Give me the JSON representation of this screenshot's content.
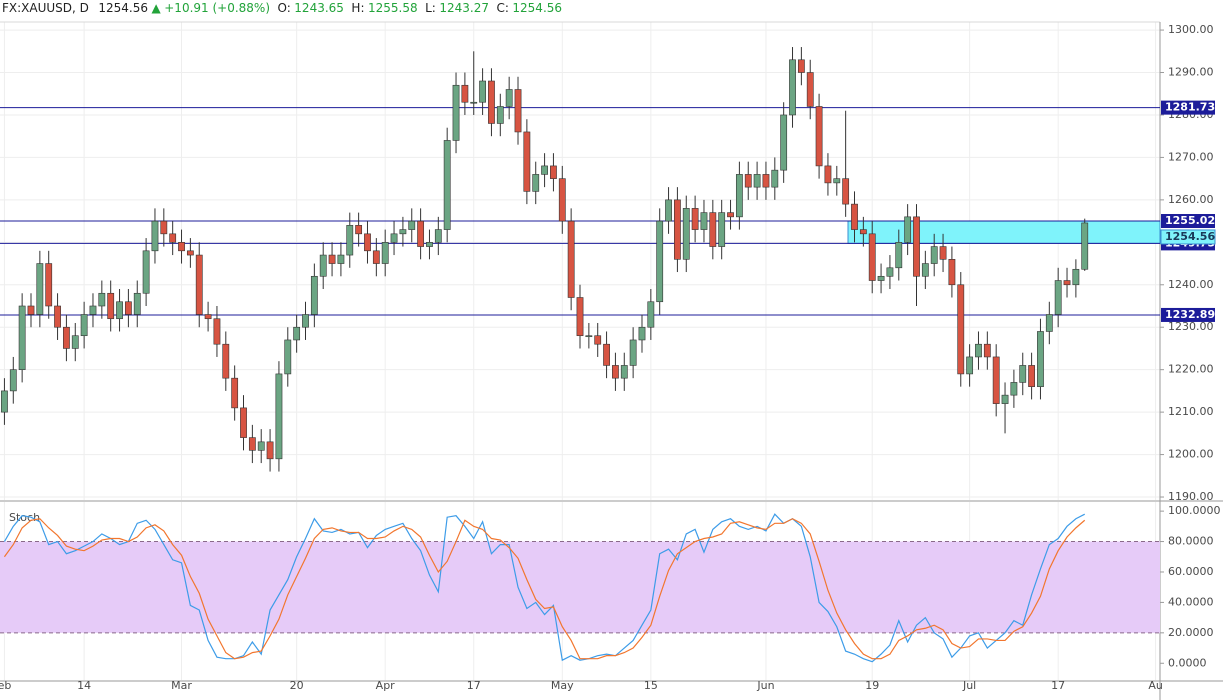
{
  "header": {
    "symbol": "FX:XAUUSD, D",
    "last": "1254.56",
    "arrow": "▲",
    "change": "+10.91 (+0.88%)",
    "o_label": "O:",
    "o": "1243.65",
    "h_label": "H:",
    "h": "1255.58",
    "l_label": "L:",
    "l": "1243.27",
    "c_label": "C:",
    "c": "1254.56"
  },
  "chart_data": [
    {
      "type": "candlestick",
      "up_color": "#6ba583",
      "down_color": "#d75442",
      "wick_color": "#333333",
      "categories": [
        "eb",
        null,
        null,
        null,
        null,
        null,
        null,
        null,
        null,
        "14",
        null,
        null,
        null,
        null,
        null,
        null,
        null,
        null,
        null,
        null,
        "Mar",
        null,
        null,
        null,
        null,
        null,
        null,
        null,
        null,
        null,
        null,
        null,
        null,
        "20",
        null,
        null,
        null,
        null,
        null,
        null,
        null,
        null,
        null,
        "Apr",
        null,
        null,
        null,
        null,
        null,
        null,
        null,
        null,
        null,
        "17",
        null,
        null,
        null,
        null,
        null,
        null,
        null,
        null,
        null,
        "May",
        null,
        null,
        null,
        null,
        null,
        null,
        null,
        null,
        null,
        "15",
        null,
        null,
        null,
        null,
        null,
        null,
        null,
        null,
        null,
        null,
        null,
        null,
        "Jun",
        null,
        null,
        null,
        null,
        null,
        null,
        null,
        null,
        null,
        null,
        null,
        "19",
        null,
        null,
        null,
        null,
        null,
        null,
        null,
        null,
        null,
        null,
        "Jul",
        null,
        null,
        null,
        null,
        null,
        null,
        null,
        null,
        null,
        "17",
        null,
        null,
        null,
        null,
        null,
        null,
        null,
        null,
        null,
        null,
        "Au"
      ],
      "open": [
        1210,
        1215,
        1220,
        1235,
        1233,
        1245,
        1235,
        1230,
        1225,
        1228,
        1233,
        1235,
        1238,
        1232,
        1236,
        1233,
        1238,
        1248,
        1255,
        1252,
        1250,
        1248,
        1247,
        1233,
        1232,
        1226,
        1218,
        1211,
        1204,
        1201,
        1203,
        1199,
        1219,
        1227,
        1230,
        1233,
        1242,
        1247,
        1245,
        1247,
        1254,
        1252,
        1248,
        1245,
        1250,
        1252,
        1253,
        1255,
        1249,
        1250,
        1253,
        1274,
        1287,
        1283,
        1283,
        1288,
        1278,
        1282,
        1286,
        1276,
        1262,
        1266,
        1268,
        1265,
        1255,
        1237,
        1228,
        1228,
        1226,
        1221,
        1218,
        1221,
        1227,
        1230,
        1236,
        1255,
        1260,
        1246,
        1258,
        1253,
        1257,
        1249,
        1257,
        1256,
        1266,
        1263,
        1266,
        1263,
        1267,
        1280,
        1293,
        1290,
        1282,
        1268,
        1264,
        1265,
        1259,
        1253,
        1252,
        1241,
        1242,
        1244,
        1250,
        1256,
        1242,
        1245,
        1249,
        1246,
        1240,
        1219,
        1223,
        1226,
        1223,
        1212,
        1214,
        1217,
        1221,
        1216,
        1229,
        1233,
        1241,
        1240,
        1243.65,
        null,
        null,
        null,
        null,
        null,
        null,
        null,
        null
      ],
      "high": [
        1218,
        1223,
        1238,
        1238,
        1248,
        1248,
        1238,
        1233,
        1231,
        1236,
        1238,
        1241,
        1241,
        1239,
        1239,
        1241,
        1251,
        1258,
        1258,
        1255,
        1253,
        1251,
        1250,
        1236,
        1235,
        1229,
        1221,
        1214,
        1207,
        1206,
        1206,
        1222,
        1230,
        1233,
        1236,
        1245,
        1250,
        1250,
        1250,
        1257,
        1257,
        1255,
        1251,
        1253,
        1255,
        1256,
        1258,
        1258,
        1253,
        1256,
        1277,
        1290,
        1290,
        1295,
        1291,
        1291,
        1285,
        1289,
        1289,
        1279,
        1269,
        1271,
        1271,
        1268,
        1258,
        1240,
        1231,
        1231,
        1229,
        1224,
        1224,
        1230,
        1233,
        1239,
        1258,
        1263,
        1263,
        1261,
        1261,
        1260,
        1260,
        1260,
        1260,
        1269,
        1269,
        1269,
        1269,
        1270,
        1283,
        1296,
        1296,
        1293,
        1285,
        1271,
        1268,
        1281,
        1262,
        1256,
        1255,
        1245,
        1247,
        1253,
        1259,
        1259,
        1248,
        1252,
        1252,
        1249,
        1243,
        1226,
        1229,
        1229,
        1226,
        1217,
        1220,
        1224,
        1224,
        1232,
        1236,
        1244,
        1244,
        1246,
        1255.58,
        null,
        null,
        null,
        null,
        null,
        null,
        null,
        null
      ],
      "low": [
        1207,
        1212,
        1217,
        1230,
        1230,
        1232,
        1227,
        1222,
        1222,
        1225,
        1230,
        1232,
        1229,
        1229,
        1230,
        1230,
        1235,
        1245,
        1249,
        1247,
        1245,
        1244,
        1230,
        1229,
        1223,
        1215,
        1208,
        1201,
        1198,
        1198,
        1196,
        1196,
        1216,
        1224,
        1227,
        1230,
        1239,
        1242,
        1242,
        1244,
        1249,
        1245,
        1242,
        1242,
        1247,
        1249,
        1250,
        1246,
        1246,
        1247,
        1250,
        1271,
        1280,
        1280,
        1280,
        1275,
        1275,
        1279,
        1273,
        1259,
        1259,
        1263,
        1262,
        1252,
        1234,
        1225,
        1225,
        1223,
        1218,
        1215,
        1215,
        1218,
        1224,
        1227,
        1233,
        1252,
        1243,
        1243,
        1250,
        1250,
        1246,
        1246,
        1253,
        1253,
        1260,
        1260,
        1260,
        1260,
        1264,
        1277,
        1287,
        1279,
        1265,
        1261,
        1261,
        1256,
        1250,
        1249,
        1238,
        1238,
        1239,
        1241,
        1247,
        1235,
        1239,
        1242,
        1243,
        1237,
        1216,
        1216,
        1220,
        1220,
        1209,
        1205,
        1211,
        1214,
        1213,
        1213,
        1226,
        1230,
        1237,
        1237,
        1243.27,
        null,
        null,
        null,
        null,
        null,
        null,
        null,
        null
      ],
      "close": [
        1215,
        1220,
        1235,
        1233,
        1245,
        1235,
        1230,
        1225,
        1228,
        1233,
        1235,
        1238,
        1232,
        1236,
        1233,
        1238,
        1248,
        1255,
        1252,
        1250,
        1248,
        1247,
        1233,
        1232,
        1226,
        1218,
        1211,
        1204,
        1201,
        1203,
        1199,
        1219,
        1227,
        1230,
        1233,
        1242,
        1247,
        1245,
        1247,
        1254,
        1252,
        1248,
        1245,
        1250,
        1252,
        1253,
        1255,
        1249,
        1250,
        1253,
        1274,
        1287,
        1283,
        1283,
        1288,
        1278,
        1282,
        1286,
        1276,
        1262,
        1266,
        1268,
        1265,
        1255,
        1237,
        1228,
        1228,
        1226,
        1221,
        1218,
        1221,
        1227,
        1230,
        1236,
        1255,
        1260,
        1246,
        1258,
        1253,
        1257,
        1249,
        1257,
        1256,
        1266,
        1263,
        1266,
        1263,
        1267,
        1280,
        1293,
        1290,
        1282,
        1268,
        1264,
        1265,
        1259,
        1253,
        1252,
        1241,
        1242,
        1244,
        1250,
        1256,
        1242,
        1245,
        1249,
        1246,
        1240,
        1219,
        1223,
        1226,
        1223,
        1212,
        1214,
        1217,
        1221,
        1216,
        1229,
        1233,
        1241,
        1240,
        1243.65,
        1254.56,
        null,
        null,
        null,
        null,
        null,
        null,
        null,
        null
      ],
      "ylim": [
        1189.3,
        1301.9
      ],
      "yticks": [
        {
          "value": 1190,
          "label": "1190.00"
        },
        {
          "value": 1200,
          "label": "1200.00"
        },
        {
          "value": 1210,
          "label": "1210.00"
        },
        {
          "value": 1220,
          "label": "1220.00"
        },
        {
          "value": 1230,
          "label": "1230.00"
        },
        {
          "value": 1240,
          "label": "1240.00"
        },
        {
          "value": 1250,
          "label": "1250.00"
        },
        {
          "value": 1260,
          "label": "1260.00"
        },
        {
          "value": 1270,
          "label": "1270.00"
        },
        {
          "value": 1280,
          "label": "1280.00"
        },
        {
          "value": 1290,
          "label": "1290.00"
        },
        {
          "value": 1300,
          "label": "1300.00"
        }
      ],
      "grid": true,
      "levels": [
        1281.73,
        1255.02,
        1249.75,
        1232.89
      ],
      "level_color": "#1c1c9a",
      "zone": {
        "low": 1249.75,
        "high": 1255.02,
        "color": "#7ff3fb"
      }
    },
    {
      "type": "line",
      "title": "Stoch",
      "ylim": [
        -11,
        106
      ],
      "yticks": [
        {
          "value": 0,
          "label": "0.0000"
        },
        {
          "value": 20,
          "label": "20.0000"
        },
        {
          "value": 40,
          "label": "40.0000"
        },
        {
          "value": 60,
          "label": "60.0000"
        },
        {
          "value": 80,
          "label": "80.0000"
        },
        {
          "value": 100,
          "label": "100.0000"
        }
      ],
      "band": {
        "low": 20,
        "high": 80,
        "color": "#e6cbf8"
      },
      "series": [
        {
          "color": "#3d9ce8",
          "values": [
            80,
            90,
            97,
            96,
            93,
            78,
            80,
            72,
            74,
            77,
            80,
            85,
            82,
            78,
            80,
            92,
            94,
            88,
            78,
            68,
            66,
            38,
            35,
            15,
            4,
            3,
            3,
            5,
            14,
            6,
            35,
            45,
            55,
            70,
            82,
            95,
            87,
            86,
            88,
            85,
            86,
            76,
            84,
            88,
            90,
            92,
            82,
            74,
            58,
            47,
            96,
            97,
            90,
            82,
            93,
            72,
            78,
            78,
            50,
            36,
            40,
            32,
            38,
            2,
            5,
            2,
            3,
            5,
            6,
            5,
            10,
            15,
            25,
            35,
            72,
            75,
            68,
            85,
            88,
            73,
            88,
            93,
            95,
            90,
            88,
            90,
            87,
            98,
            92,
            95,
            90,
            70,
            40,
            34,
            24,
            8,
            6,
            3,
            1,
            6,
            12,
            28,
            14,
            25,
            30,
            20,
            16,
            4,
            10,
            18,
            20,
            10,
            15,
            20,
            28,
            25,
            45,
            62,
            78,
            82,
            90,
            95,
            98,
            null,
            null,
            null,
            null,
            null,
            null,
            null,
            null
          ]
        },
        {
          "color": "#f2762e",
          "values": [
            70,
            78,
            89,
            94,
            95,
            89,
            84,
            77,
            75,
            74,
            77,
            81,
            82,
            82,
            80,
            83,
            89,
            91,
            87,
            78,
            71,
            57,
            46,
            29,
            18,
            7,
            3,
            4,
            7,
            8,
            18,
            29,
            45,
            57,
            69,
            82,
            88,
            89,
            87,
            86,
            86,
            82,
            82,
            83,
            87,
            90,
            88,
            83,
            71,
            60,
            67,
            80,
            94,
            90,
            88,
            82,
            81,
            76,
            69,
            55,
            42,
            36,
            37,
            24,
            15,
            3,
            3,
            3,
            5,
            5,
            7,
            10,
            17,
            25,
            44,
            61,
            72,
            76,
            80,
            82,
            83,
            85,
            92,
            93,
            91,
            89,
            88,
            92,
            92,
            95,
            92,
            85,
            67,
            48,
            33,
            22,
            13,
            6,
            3,
            3,
            6,
            15,
            18,
            22,
            23,
            25,
            22,
            13,
            10,
            11,
            16,
            16,
            15,
            15,
            21,
            24,
            33,
            44,
            62,
            74,
            83,
            89,
            94,
            null,
            null,
            null,
            null,
            null,
            null,
            null,
            null
          ]
        }
      ]
    }
  ]
}
